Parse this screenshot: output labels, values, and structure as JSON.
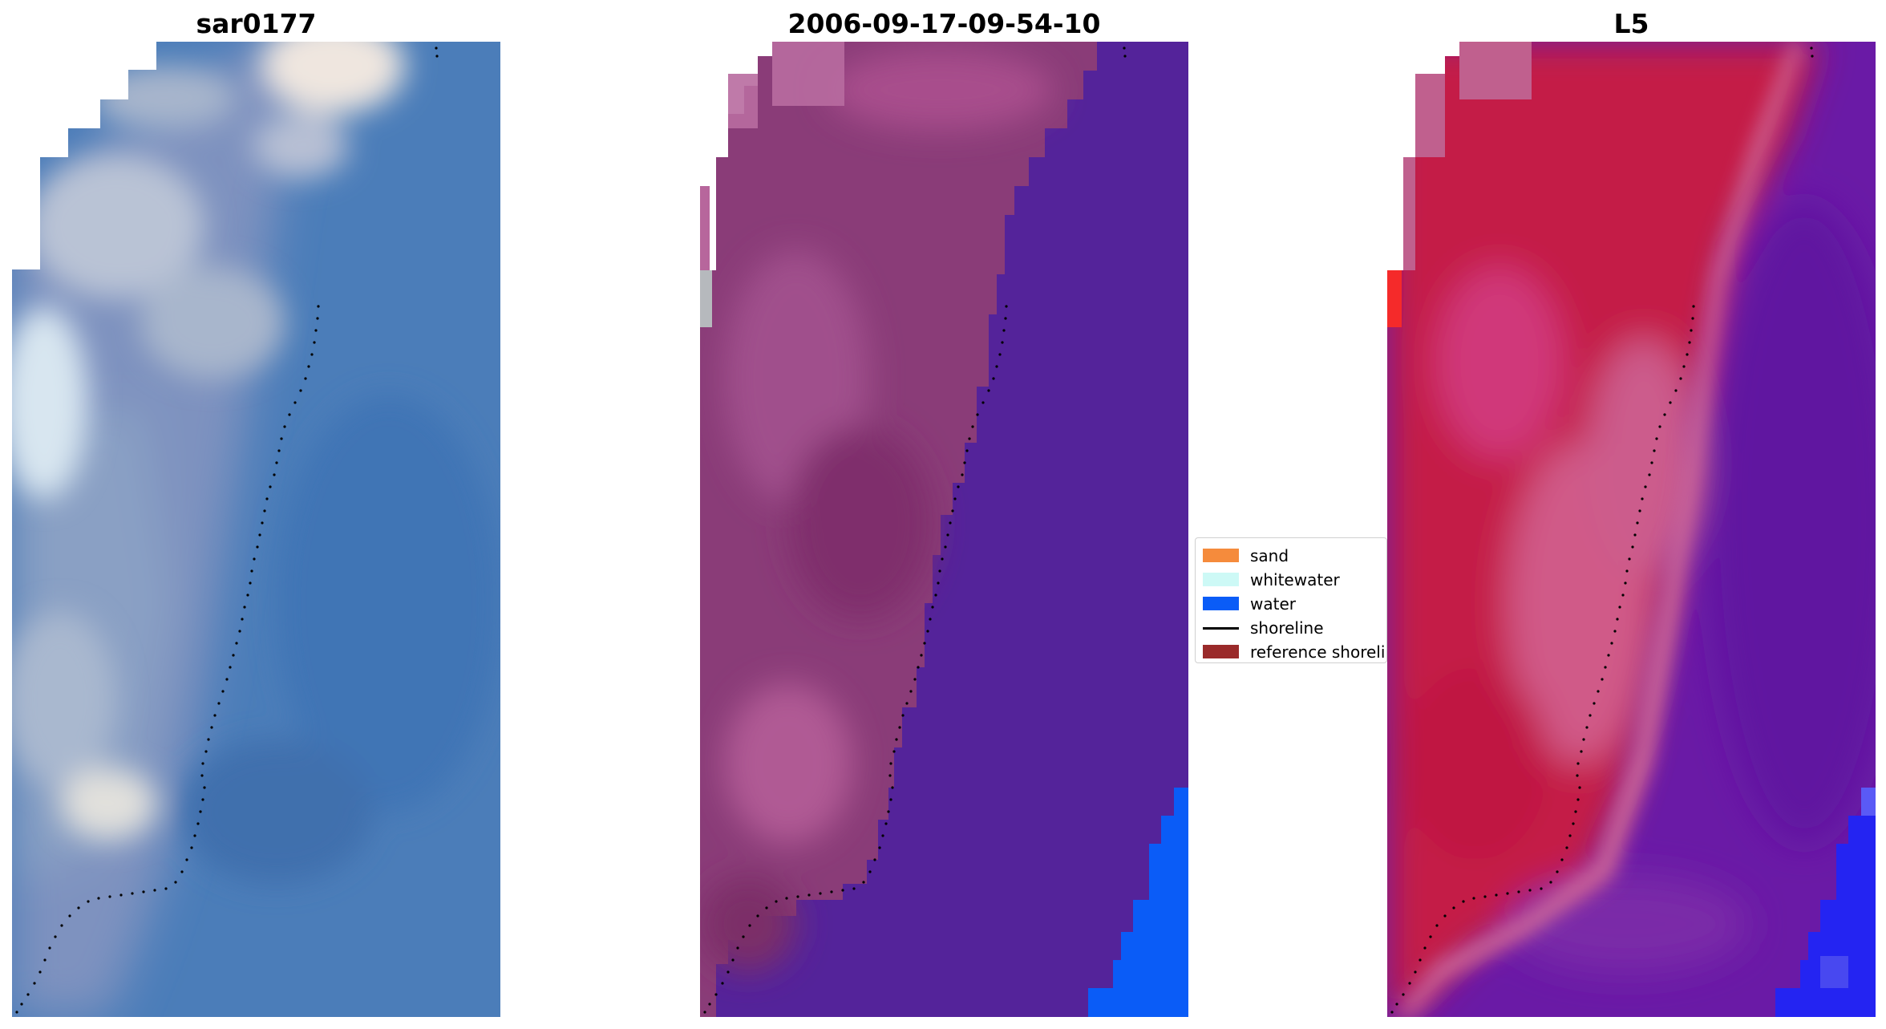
{
  "panels": [
    {
      "title": "sar0177"
    },
    {
      "title": "2006-09-17-09-54-10"
    },
    {
      "title": "L5"
    }
  ],
  "legend": {
    "items": [
      {
        "label": "sand",
        "color": "#f58b3c",
        "kind": "patch"
      },
      {
        "label": "whitewater",
        "color": "#cdf9f6",
        "kind": "patch"
      },
      {
        "label": "water",
        "color": "#0a5cf7",
        "kind": "patch"
      },
      {
        "label": "shoreline",
        "color": "#000000",
        "kind": "line"
      },
      {
        "label": "reference shoreline",
        "color": "#9a2a2a",
        "kind": "patch"
      }
    ]
  },
  "colors": {
    "rgb_land": "#9aa8c6",
    "rgb_water": "#4a7ab8",
    "classified_land": "#8c3e7a",
    "classified_water": "#54239a",
    "classified_ocean": "#0a5cf7",
    "mndwi_land": "#c0183e",
    "mndwi_water": "#6a1ea4",
    "shoreline_dots": "#000000"
  }
}
